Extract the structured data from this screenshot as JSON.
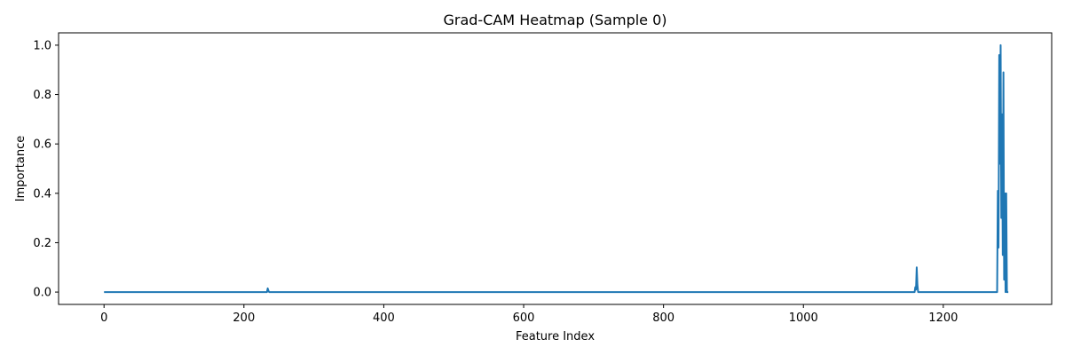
{
  "chart_data": {
    "type": "line",
    "title": "Grad-CAM Heatmap (Sample 0)",
    "xlabel": "Feature Index",
    "ylabel": "Importance",
    "xlim": [
      -65,
      1355
    ],
    "ylim": [
      -0.05,
      1.05
    ],
    "xticks": [
      0,
      200,
      400,
      600,
      800,
      1000,
      1200
    ],
    "xtick_labels": [
      "0",
      "200",
      "400",
      "600",
      "800",
      "1000",
      "1200"
    ],
    "yticks": [
      0.0,
      0.2,
      0.4,
      0.6,
      0.8,
      1.0
    ],
    "ytick_labels": [
      "0.0",
      "0.2",
      "0.4",
      "0.6",
      "0.8",
      "1.0"
    ],
    "grid": false,
    "color": "#1f77b4",
    "series": [
      {
        "x": [
          0,
          233,
          234,
          235,
          236,
          1159,
          1160,
          1161,
          1162,
          1163,
          1164,
          1277,
          1278,
          1279,
          1280,
          1281,
          1282,
          1283,
          1284,
          1285,
          1286,
          1287,
          1288,
          1289,
          1290,
          1291,
          1292,
          1293
        ],
        "y": [
          0,
          0,
          0.015,
          0.006,
          0,
          0,
          0.02,
          0.01,
          0.1,
          0.03,
          0,
          0,
          0.41,
          0.18,
          0.96,
          0.52,
          1.0,
          0.3,
          0.72,
          0.15,
          0.89,
          0.05,
          0.4,
          0.0,
          0.4,
          0.0,
          0.0,
          0.0
        ]
      }
    ]
  }
}
